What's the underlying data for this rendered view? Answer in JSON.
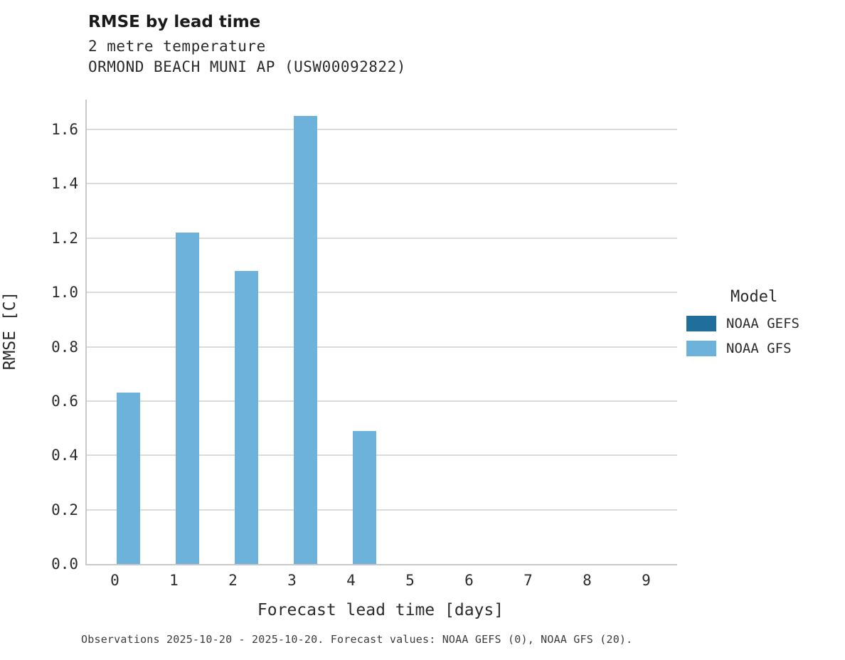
{
  "header": {
    "title": "RMSE by lead time",
    "subtitle_line1": "2 metre temperature",
    "subtitle_line2": "ORMOND BEACH MUNI AP (USW00092822)"
  },
  "chart_data": {
    "type": "bar",
    "title": "RMSE by lead time",
    "subtitle": "2 metre temperature — ORMOND BEACH MUNI AP (USW00092822)",
    "xlabel": "Forecast lead time [days]",
    "ylabel": "RMSE [C]",
    "categories": [
      "0",
      "1",
      "2",
      "3",
      "4",
      "5",
      "6",
      "7",
      "8",
      "9"
    ],
    "series": [
      {
        "name": "NOAA GEFS",
        "color": "#1f6e9c",
        "values": [
          0,
          0,
          0,
          0,
          0,
          0,
          0,
          0,
          0,
          0
        ]
      },
      {
        "name": "NOAA GFS",
        "color": "#6cb2db",
        "values": [
          0.63,
          1.22,
          1.08,
          1.65,
          0.49,
          0,
          0,
          0,
          0,
          0
        ]
      }
    ],
    "yticks": [
      0.0,
      0.2,
      0.4,
      0.6,
      0.8,
      1.0,
      1.2,
      1.4,
      1.6
    ],
    "ylim": [
      0,
      1.71
    ],
    "grid": "horizontal",
    "legend_position": "right"
  },
  "legend": {
    "title": "Model",
    "entries": [
      {
        "label": "NOAA GEFS",
        "color": "#1f6e9c"
      },
      {
        "label": "NOAA GFS",
        "color": "#6cb2db"
      }
    ]
  },
  "caption": "Observations 2025-10-20 - 2025-10-20. Forecast values: NOAA GEFS (0), NOAA GFS (20)."
}
